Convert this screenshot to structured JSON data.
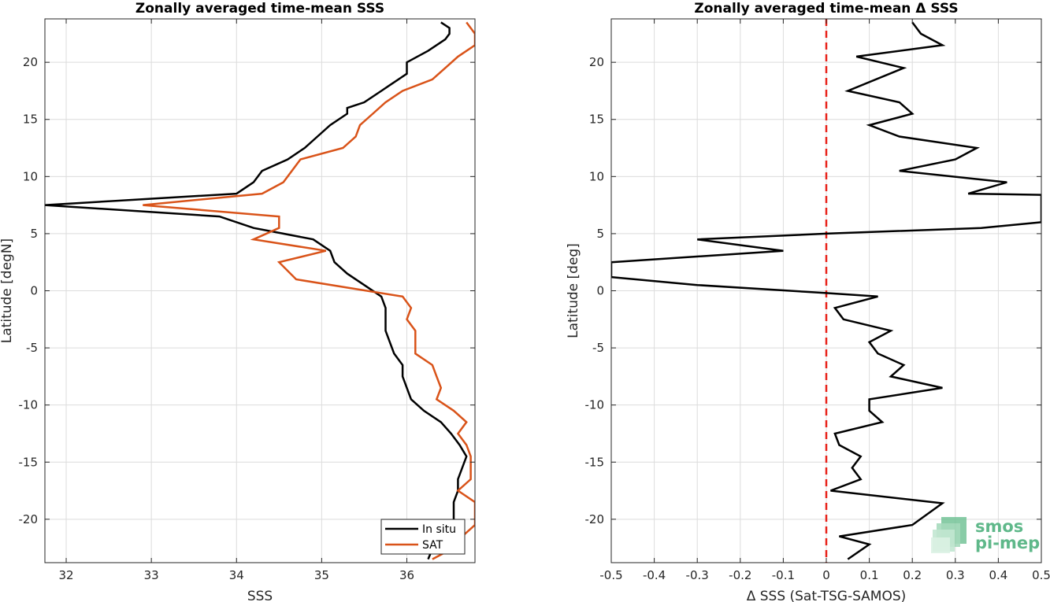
{
  "chart_data": [
    {
      "type": "line",
      "title": "Zonally averaged time-mean SSS",
      "xlabel": "SSS",
      "ylabel": "Latitude [degN]",
      "xlim": [
        31.75,
        36.8
      ],
      "ylim": [
        -23.8,
        23.8
      ],
      "xticks": [
        32,
        33,
        34,
        35,
        36
      ],
      "yticks": [
        -20,
        -15,
        -10,
        -5,
        0,
        5,
        10,
        15,
        20
      ],
      "grid": true,
      "legend_position": "bottom-right",
      "series": [
        {
          "name": "In situ",
          "color": "#000000",
          "points": [
            [
              36.25,
              -23.5
            ],
            [
              36.3,
              -22.6
            ],
            [
              36.45,
              -21.5
            ],
            [
              36.55,
              -20.5
            ],
            [
              36.55,
              -19.5
            ],
            [
              36.55,
              -18.5
            ],
            [
              36.6,
              -17.5
            ],
            [
              36.6,
              -16.5
            ],
            [
              36.65,
              -15.5
            ],
            [
              36.7,
              -14.5
            ],
            [
              36.62,
              -13.5
            ],
            [
              36.52,
              -12.5
            ],
            [
              36.4,
              -11.5
            ],
            [
              36.2,
              -10.5
            ],
            [
              36.05,
              -9.5
            ],
            [
              36.0,
              -8.5
            ],
            [
              35.95,
              -7.5
            ],
            [
              35.95,
              -6.5
            ],
            [
              35.85,
              -5.5
            ],
            [
              35.8,
              -4.5
            ],
            [
              35.75,
              -3.5
            ],
            [
              35.75,
              -2.5
            ],
            [
              35.75,
              -1.5
            ],
            [
              35.7,
              -0.5
            ],
            [
              35.5,
              0.5
            ],
            [
              35.3,
              1.5
            ],
            [
              35.15,
              2.5
            ],
            [
              35.1,
              3.5
            ],
            [
              34.9,
              4.5
            ],
            [
              34.55,
              5.0
            ],
            [
              34.2,
              5.5
            ],
            [
              33.8,
              6.5
            ],
            [
              31.75,
              7.5
            ],
            [
              34.0,
              8.5
            ],
            [
              34.2,
              9.5
            ],
            [
              34.3,
              10.5
            ],
            [
              34.6,
              11.5
            ],
            [
              34.8,
              12.5
            ],
            [
              34.95,
              13.5
            ],
            [
              35.1,
              14.5
            ],
            [
              35.3,
              15.5
            ],
            [
              35.3,
              16.0
            ],
            [
              35.5,
              16.5
            ],
            [
              35.7,
              17.5
            ],
            [
              35.8,
              18.0
            ],
            [
              36.0,
              19.0
            ],
            [
              36.0,
              20.0
            ],
            [
              36.25,
              21.0
            ],
            [
              36.45,
              22.0
            ],
            [
              36.5,
              22.5
            ],
            [
              36.5,
              23.0
            ],
            [
              36.4,
              23.5
            ]
          ]
        },
        {
          "name": "SAT",
          "color": "#d95319",
          "points": [
            [
              36.3,
              -23.5
            ],
            [
              36.55,
              -22.5
            ],
            [
              36.65,
              -21.5
            ],
            [
              36.8,
              -20.5
            ],
            [
              36.8,
              -19.5
            ],
            [
              36.8,
              -18.5
            ],
            [
              36.6,
              -17.5
            ],
            [
              36.75,
              -16.5
            ],
            [
              36.75,
              -15.5
            ],
            [
              36.75,
              -14.5
            ],
            [
              36.7,
              -13.5
            ],
            [
              36.6,
              -12.5
            ],
            [
              36.7,
              -11.5
            ],
            [
              36.55,
              -10.5
            ],
            [
              36.35,
              -9.5
            ],
            [
              36.4,
              -8.5
            ],
            [
              36.35,
              -7.5
            ],
            [
              36.3,
              -6.5
            ],
            [
              36.1,
              -5.5
            ],
            [
              36.1,
              -4.5
            ],
            [
              36.1,
              -3.5
            ],
            [
              36.0,
              -2.5
            ],
            [
              36.05,
              -1.5
            ],
            [
              35.95,
              -0.5
            ],
            [
              34.7,
              1.0
            ],
            [
              34.5,
              2.5
            ],
            [
              35.05,
              3.5
            ],
            [
              34.2,
              4.5
            ],
            [
              34.5,
              5.5
            ],
            [
              34.5,
              6.5
            ],
            [
              32.9,
              7.5
            ],
            [
              34.3,
              8.5
            ],
            [
              34.55,
              9.5
            ],
            [
              34.75,
              11.5
            ],
            [
              35.25,
              12.5
            ],
            [
              35.4,
              13.5
            ],
            [
              35.45,
              14.5
            ],
            [
              35.6,
              15.5
            ],
            [
              35.75,
              16.5
            ],
            [
              35.95,
              17.5
            ],
            [
              36.3,
              18.5
            ],
            [
              36.45,
              19.5
            ],
            [
              36.6,
              20.5
            ],
            [
              36.8,
              21.5
            ],
            [
              36.8,
              22.5
            ],
            [
              36.7,
              23.5
            ]
          ]
        }
      ]
    },
    {
      "type": "line",
      "title": "Zonally averaged time-mean Δ SSS",
      "xlabel": "Δ SSS (Sat-TSG-SAMOS)",
      "ylabel": "Latitude [deg]",
      "xlim": [
        -0.5,
        0.5
      ],
      "ylim": [
        -23.8,
        23.8
      ],
      "xticks": [
        -0.5,
        -0.4,
        -0.3,
        -0.2,
        -0.1,
        0,
        0.1,
        0.2,
        0.3,
        0.4,
        0.5
      ],
      "xticklabels": [
        "-0.5",
        "-0.4",
        "-0.3",
        "-0.2",
        "-0.1",
        "0",
        "0.1",
        "0.2",
        "0.3",
        "0.4",
        "0.5"
      ],
      "yticks": [
        -20,
        -15,
        -10,
        -5,
        0,
        5,
        10,
        15,
        20
      ],
      "grid": true,
      "reference_line": {
        "x": 0,
        "color": "#e8221a",
        "style": "dashed"
      },
      "series": [
        {
          "color": "#000000",
          "points": [
            [
              0.05,
              -23.5
            ],
            [
              0.1,
              -22.2
            ],
            [
              0.03,
              -21.5
            ],
            [
              0.2,
              -20.5
            ],
            [
              0.27,
              -18.6
            ],
            [
              0.01,
              -17.5
            ],
            [
              0.08,
              -16.5
            ],
            [
              0.06,
              -15.5
            ],
            [
              0.08,
              -14.5
            ],
            [
              0.03,
              -13.5
            ],
            [
              0.02,
              -12.5
            ],
            [
              0.13,
              -11.5
            ],
            [
              0.1,
              -10.5
            ],
            [
              0.1,
              -9.5
            ],
            [
              0.27,
              -8.5
            ],
            [
              0.15,
              -7.5
            ],
            [
              0.18,
              -6.5
            ],
            [
              0.12,
              -5.5
            ],
            [
              0.1,
              -4.5
            ],
            [
              0.15,
              -3.5
            ],
            [
              0.04,
              -2.5
            ],
            [
              0.02,
              -1.5
            ],
            [
              0.12,
              -0.5
            ],
            [
              0.0,
              -0.2
            ],
            [
              -0.3,
              0.5
            ],
            [
              -0.5,
              1.2
            ],
            [
              -0.5,
              2.5
            ],
            [
              -0.1,
              3.5
            ],
            [
              -0.3,
              4.5
            ],
            [
              0.0,
              5.0
            ],
            [
              0.36,
              5.5
            ],
            [
              0.5,
              6.0
            ],
            [
              0.5,
              8.4
            ],
            [
              0.33,
              8.5
            ],
            [
              0.42,
              9.5
            ],
            [
              0.17,
              10.5
            ],
            [
              0.3,
              11.5
            ],
            [
              0.35,
              12.5
            ],
            [
              0.17,
              13.5
            ],
            [
              0.1,
              14.5
            ],
            [
              0.2,
              15.5
            ],
            [
              0.17,
              16.5
            ],
            [
              0.05,
              17.5
            ],
            [
              0.18,
              19.5
            ],
            [
              0.07,
              20.5
            ],
            [
              0.27,
              21.5
            ],
            [
              0.22,
              22.5
            ],
            [
              0.2,
              23.5
            ]
          ]
        }
      ]
    }
  ],
  "logo": {
    "line1": "smos",
    "line2": "pi-mep",
    "color": "#5fb88a"
  }
}
